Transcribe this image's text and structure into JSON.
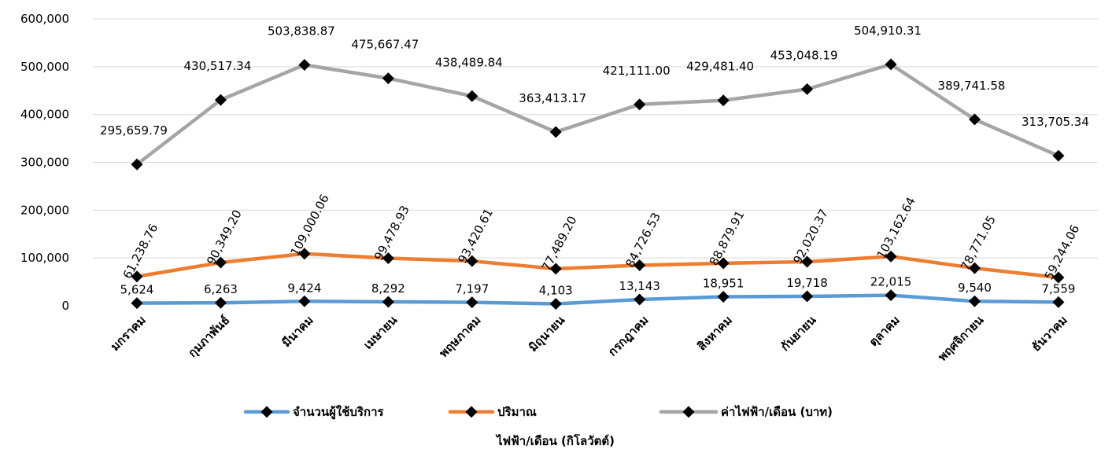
{
  "chart_data": {
    "type": "line",
    "categories": [
      "มกราคม",
      "กุมภาพันธ์",
      "มีนาคม",
      "เมษายน",
      "พฤษภาคม",
      "มิถุนายน",
      "กรกฎาคม",
      "สิงหาคม",
      "กันยายน",
      "ตุลาคม",
      "พฤศจิกายน",
      "ธันวาคม"
    ],
    "xlabel": "ไฟฟ้า/เดือน (กิโลวัตต์)",
    "ylabel": "",
    "ylim": [
      0,
      600000
    ],
    "yticks": [
      0,
      100000,
      200000,
      300000,
      400000,
      500000,
      600000
    ],
    "ytick_labels": [
      "0",
      "100,000",
      "200,000",
      "300,000",
      "400,000",
      "500,000",
      "600,000"
    ],
    "grid": true,
    "legend_position": "bottom",
    "series": [
      {
        "name": "จำนวนผู้ใช้บริการ",
        "color": "#5b9bd5",
        "values": [
          5624,
          6263,
          9424,
          8292,
          7197,
          4103,
          13143,
          18951,
          19718,
          22015,
          9540,
          7559
        ],
        "labels": [
          "5,624",
          "6,263",
          "9,424",
          "8,292",
          "7,197",
          "4,103",
          "13,143",
          "18,951",
          "19,718",
          "22,015",
          "9,540",
          "7,559"
        ],
        "label_style": "horizontal"
      },
      {
        "name": "ปริมาณ",
        "color": "#ed7d31",
        "values": [
          61238.76,
          90349.2,
          109000.06,
          99478.93,
          93420.61,
          77489.2,
          84726.53,
          88879.91,
          92020.37,
          103162.64,
          78771.05,
          59244.06
        ],
        "labels": [
          "61,238.76",
          "90,349.20",
          "109,000.06",
          "99,478.93",
          "93,420.61",
          "77,489.20",
          "84,726.53",
          "88,879.91",
          "92,020.37",
          "103,162.64",
          "78,771.05",
          "59,244.06"
        ],
        "label_style": "rotated"
      },
      {
        "name": "ค่าไฟฟ้า/เดือน (บาท)",
        "color": "#a5a5a5",
        "values": [
          295659.79,
          430517.34,
          503838.87,
          475667.47,
          438489.84,
          363413.17,
          421111.0,
          429481.4,
          453048.19,
          504910.31,
          389741.58,
          313705.34
        ],
        "labels": [
          "295,659.79",
          "430,517.34",
          "503,838.87",
          "475,667.47",
          "438,489.84",
          "363,413.17",
          "421,111.00",
          "429,481.40",
          "453,048.19",
          "504,910.31",
          "389,741.58",
          "313,705.34"
        ],
        "label_style": "horizontal"
      }
    ],
    "marker": "diamond",
    "marker_color": "#000000"
  }
}
